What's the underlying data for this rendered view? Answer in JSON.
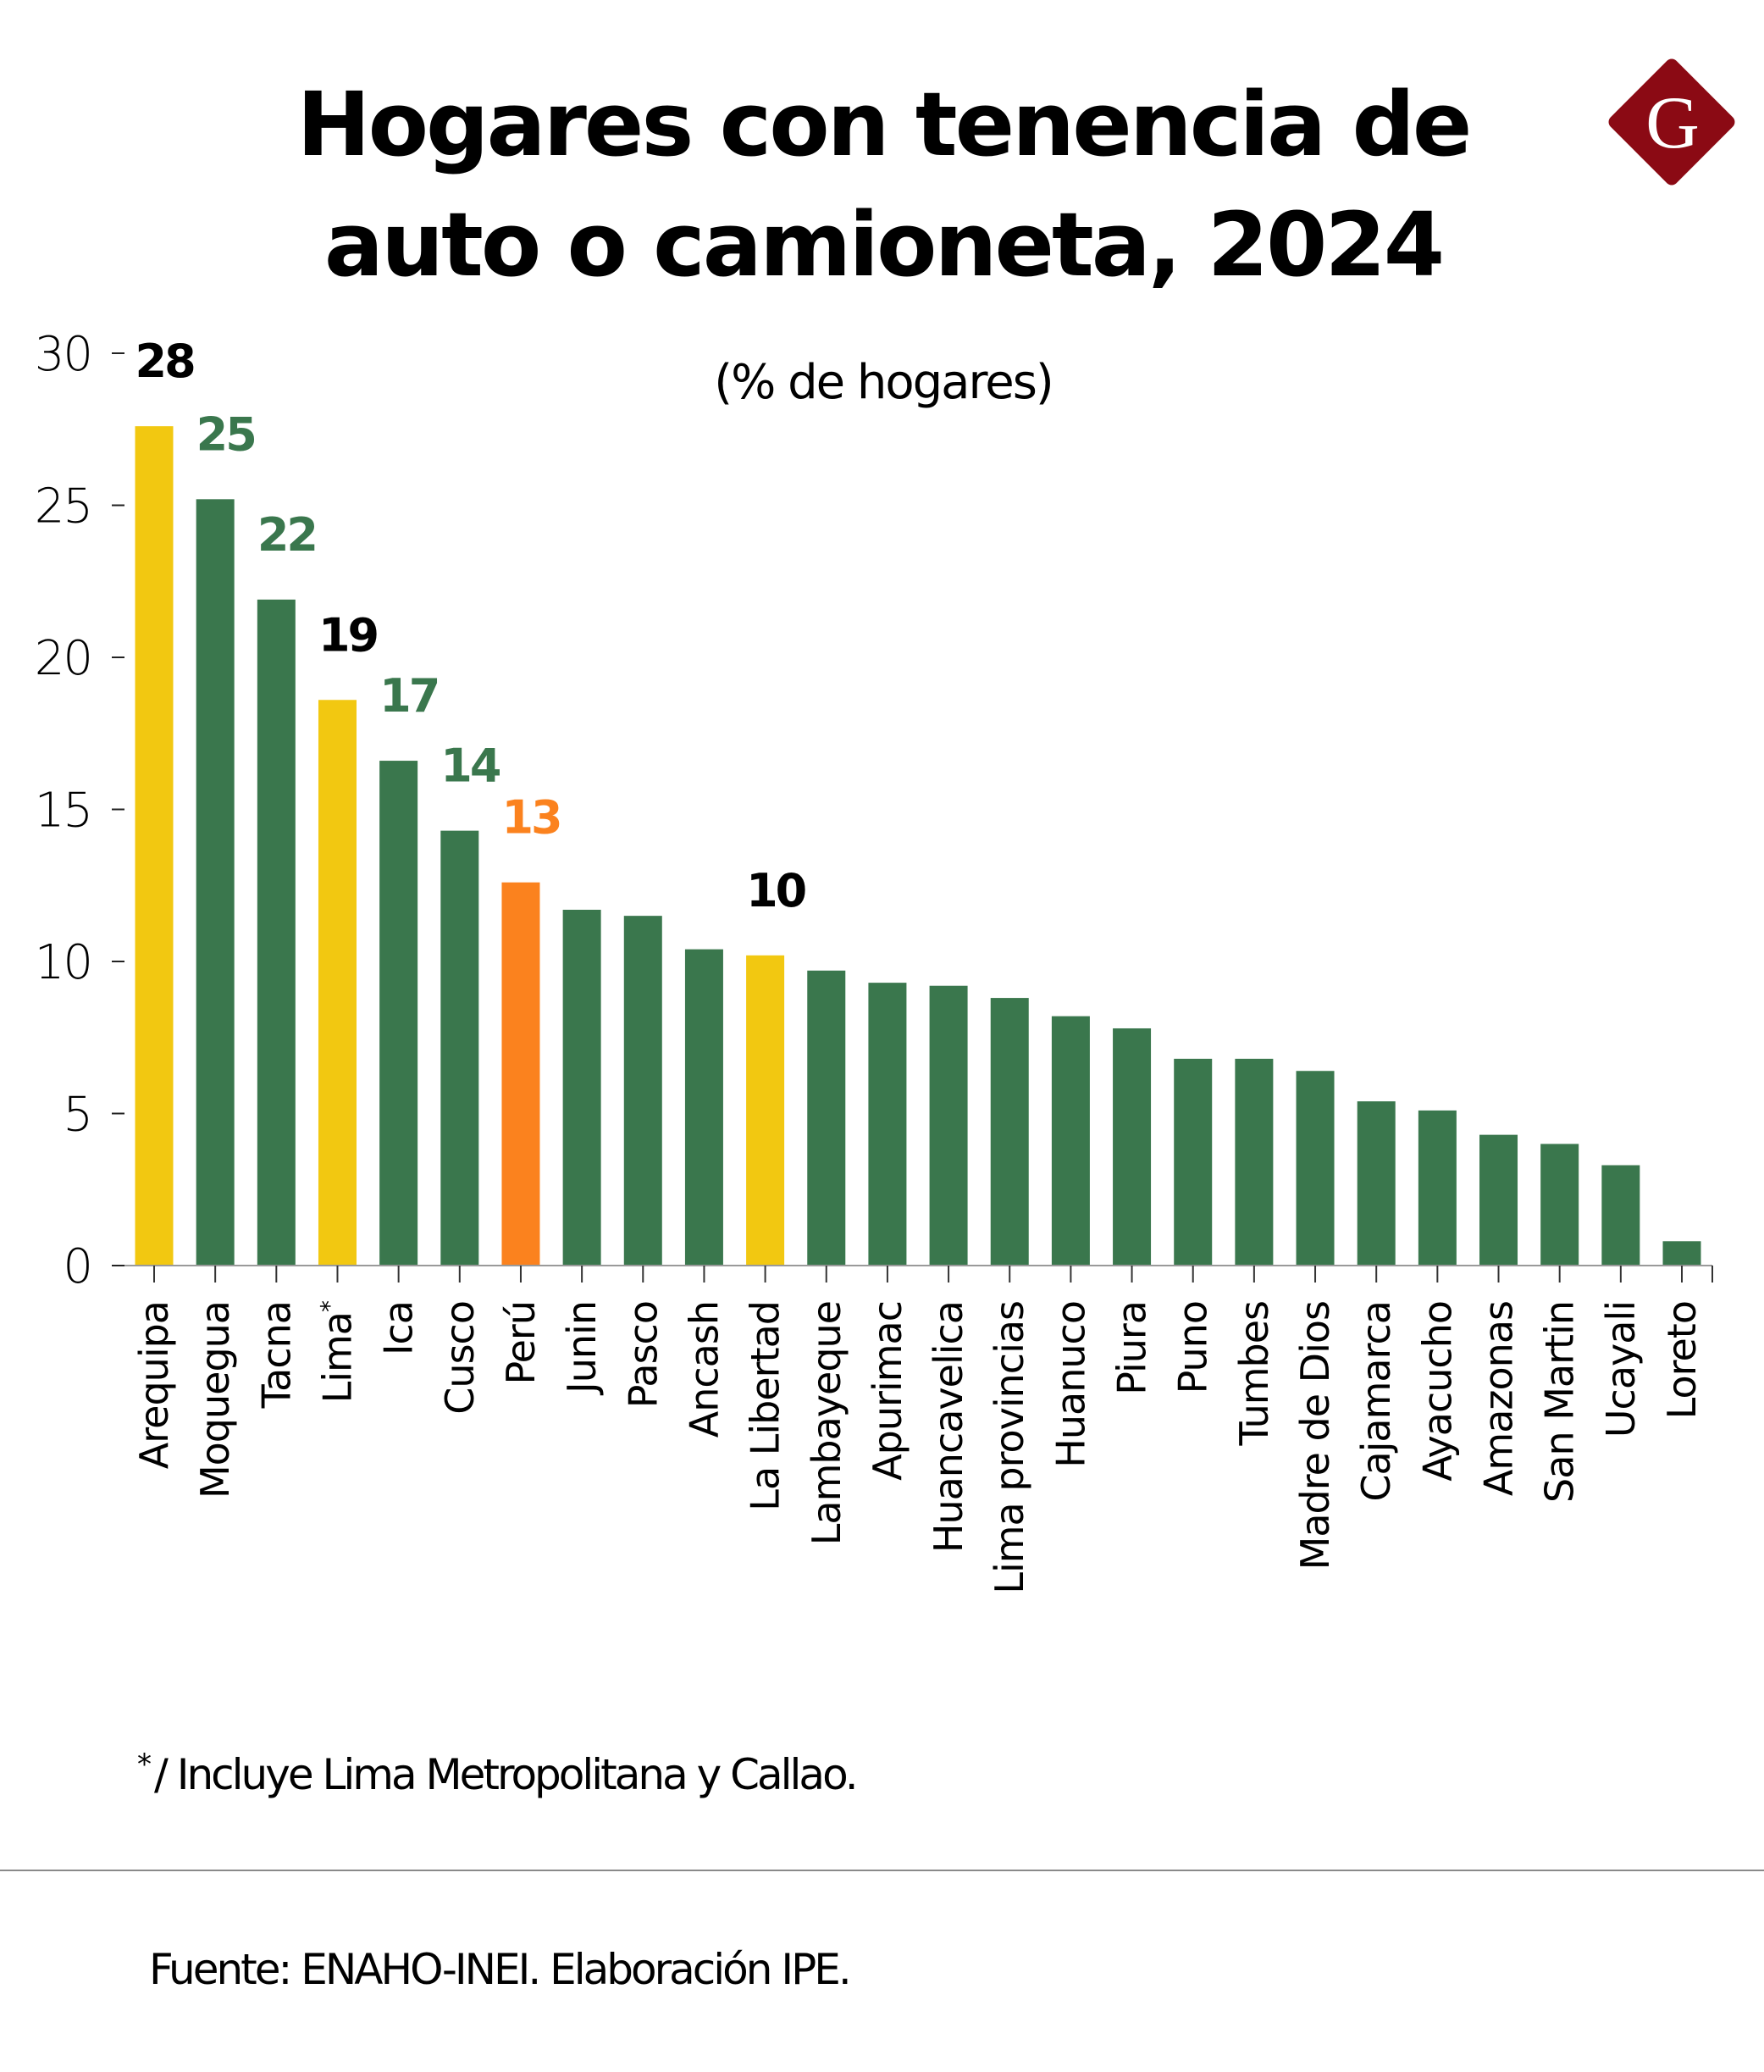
{
  "logo": {
    "letter": "G",
    "color": "#8b0a14"
  },
  "chart_data": {
    "type": "bar",
    "title": "Hogares con tenencia de auto o camioneta, 2024",
    "title_lines": [
      "Hogares con tenencia de",
      "auto o camioneta, 2024"
    ],
    "subtitle": "(% de hogares)",
    "xlabel": "",
    "ylabel": "",
    "ylim": [
      0,
      30
    ],
    "yticks": [
      0,
      5,
      10,
      15,
      20,
      25,
      30
    ],
    "grid": false,
    "categories": [
      "Arequipa",
      "Moquegua",
      "Tacna",
      "Lima",
      "Ica",
      "Cusco",
      "Perú",
      "Junin",
      "Pasco",
      "Ancash",
      "La Libertad",
      "Lambayeque",
      "Apurimac",
      "Huancavelica",
      "Lima provincias",
      "Huanuco",
      "Piura",
      "Puno",
      "Tumbes",
      "Madre de Dios",
      "Cajamarca",
      "Ayacucho",
      "Amazonas",
      "San Martin",
      "Ucayali",
      "Loreto"
    ],
    "category_marks": [
      "",
      "",
      "",
      "*",
      "",
      "",
      "",
      "",
      "",
      "",
      "",
      "",
      "",
      "",
      "",
      "",
      "",
      "",
      "",
      "",
      "",
      "",
      "",
      "",
      "",
      ""
    ],
    "values": [
      27.6,
      25.2,
      21.9,
      18.6,
      16.6,
      14.3,
      12.6,
      11.7,
      11.5,
      10.4,
      10.2,
      9.7,
      9.3,
      9.2,
      8.8,
      8.2,
      7.8,
      6.8,
      6.8,
      6.4,
      5.4,
      5.1,
      4.3,
      4.0,
      3.3,
      0.8
    ],
    "bar_colors": [
      "#f2c811",
      "#3a774d",
      "#3a774d",
      "#f2c811",
      "#3a774d",
      "#3a774d",
      "#fb821e",
      "#3a774d",
      "#3a774d",
      "#3a774d",
      "#f2c811",
      "#3a774d",
      "#3a774d",
      "#3a774d",
      "#3a774d",
      "#3a774d",
      "#3a774d",
      "#3a774d",
      "#3a774d",
      "#3a774d",
      "#3a774d",
      "#3a774d",
      "#3a774d",
      "#3a774d",
      "#3a774d",
      "#3a774d"
    ],
    "data_labels": [
      {
        "index": 0,
        "text": "28",
        "color": "#000000"
      },
      {
        "index": 1,
        "text": "25",
        "color": "#3a774d"
      },
      {
        "index": 2,
        "text": "22",
        "color": "#3a774d"
      },
      {
        "index": 3,
        "text": "19",
        "color": "#000000"
      },
      {
        "index": 4,
        "text": "17",
        "color": "#3a774d"
      },
      {
        "index": 5,
        "text": "14",
        "color": "#3a774d"
      },
      {
        "index": 6,
        "text": "13",
        "color": "#fb821e"
      },
      {
        "index": 10,
        "text": "10",
        "color": "#000000"
      }
    ],
    "colors": {
      "highlight": "#f2c811",
      "default": "#3a774d",
      "national": "#fb821e"
    }
  },
  "footnote": {
    "mark": "*",
    "text": "/ Incluye Lima Metropolitana y Callao."
  },
  "source": "Fuente: ENAHO-INEI. Elaboración IPE."
}
